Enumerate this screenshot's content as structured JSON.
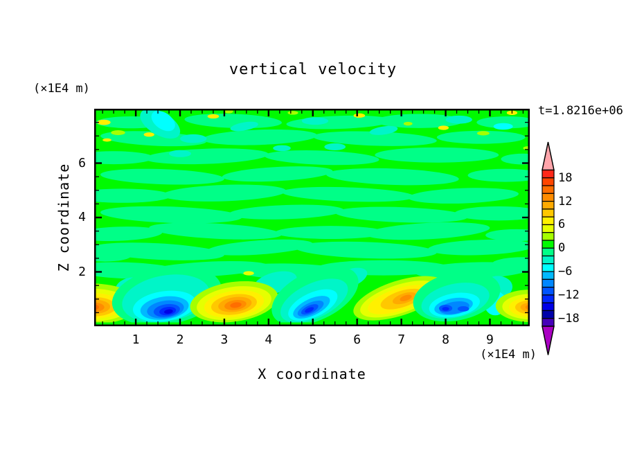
{
  "chart_data": {
    "type": "filled_contour",
    "title": "vertical velocity",
    "time_annotation": "t=1.8216e+06",
    "xlabel": "X coordinate",
    "zlabel": "Z coordinate",
    "x_unit": "(×1E4 m)",
    "z_unit": "(×1E4 m)",
    "xlim": [
      0.06,
      9.9
    ],
    "zlim": [
      0,
      8
    ],
    "x_major_ticks": [
      1,
      2,
      3,
      4,
      5,
      6,
      7,
      8,
      9
    ],
    "x_minor_step": 0.25,
    "z_major_ticks": [
      2,
      4,
      6
    ],
    "z_minor_step": 0.5,
    "grid": false,
    "legend_position": "right-colorbar",
    "contour_levels": {
      "min": -20,
      "max": 20,
      "step": 2
    },
    "colorbar": {
      "tick_values": [
        18,
        12,
        6,
        0,
        -6,
        -12,
        -18
      ],
      "tick_labels": [
        "18",
        "12",
        "6",
        "0",
        "−6",
        "−12",
        "−18"
      ],
      "band_colors": [
        "#FF2819",
        "#FF4600",
        "#FF6E00",
        "#FF8C00",
        "#FFAA00",
        "#FFC800",
        "#FFF000",
        "#E6FF00",
        "#A5FF00",
        "#00FA00",
        "#00FF87",
        "#00F5C8",
        "#00FFFF",
        "#00B9FF",
        "#0087FF",
        "#0055FF",
        "#0028FF",
        "#0000E6",
        "#0000AA",
        "#4600B9"
      ],
      "over_color": "#FFA5AB",
      "under_color": "#AA00C3",
      "outline_color": "#000000"
    },
    "field": {
      "description": "w field: near-zero streaky region aloft (bands -2..0 and 0..2), alternating strong updraft/downdraft cells near the bottom boundary",
      "base_color_index": 9,
      "streak_color_index": 10,
      "streaks": [
        [
          0.8,
          2.05,
          1.25,
          0.3,
          2
        ],
        [
          2.6,
          2.1,
          1.4,
          0.27,
          -3
        ],
        [
          4.6,
          2.0,
          1.35,
          0.3,
          2
        ],
        [
          6.6,
          2.15,
          1.5,
          0.28,
          0
        ],
        [
          8.6,
          2.05,
          1.3,
          0.3,
          -2
        ],
        [
          9.75,
          2.3,
          0.7,
          0.24,
          0
        ],
        [
          1.5,
          2.75,
          1.5,
          0.3,
          3
        ],
        [
          3.8,
          2.9,
          1.2,
          0.26,
          -4
        ],
        [
          6.2,
          2.8,
          1.6,
          0.3,
          2
        ],
        [
          8.8,
          2.9,
          1.2,
          0.28,
          -2
        ],
        [
          0.3,
          2.6,
          0.6,
          0.22,
          0
        ],
        [
          0.6,
          3.4,
          1.0,
          0.26,
          -2
        ],
        [
          2.8,
          3.5,
          1.5,
          0.28,
          3
        ],
        [
          5.4,
          3.45,
          1.25,
          0.24,
          0
        ],
        [
          7.6,
          3.5,
          1.4,
          0.3,
          -3
        ],
        [
          9.6,
          3.35,
          0.7,
          0.22,
          0
        ],
        [
          1.8,
          4.1,
          1.6,
          0.3,
          2
        ],
        [
          4.4,
          4.2,
          1.3,
          0.26,
          -2
        ],
        [
          7.0,
          4.1,
          1.5,
          0.28,
          2
        ],
        [
          9.2,
          4.15,
          1.0,
          0.26,
          0
        ],
        [
          0.7,
          4.8,
          1.1,
          0.26,
          0
        ],
        [
          3.0,
          4.9,
          1.4,
          0.3,
          -2
        ],
        [
          5.8,
          4.85,
          1.5,
          0.26,
          2
        ],
        [
          8.4,
          4.8,
          1.25,
          0.28,
          -2
        ],
        [
          1.6,
          5.5,
          1.4,
          0.28,
          2
        ],
        [
          4.2,
          5.6,
          1.25,
          0.26,
          -3
        ],
        [
          6.8,
          5.5,
          1.5,
          0.3,
          2
        ],
        [
          9.35,
          5.55,
          0.85,
          0.24,
          0
        ],
        [
          0.5,
          6.2,
          0.9,
          0.24,
          0
        ],
        [
          2.6,
          6.25,
          1.4,
          0.28,
          -2
        ],
        [
          5.2,
          6.2,
          1.3,
          0.26,
          2
        ],
        [
          7.8,
          6.3,
          1.4,
          0.28,
          0
        ],
        [
          9.75,
          6.15,
          0.5,
          0.2,
          0
        ],
        [
          1.4,
          6.9,
          1.2,
          0.26,
          3
        ],
        [
          3.8,
          6.95,
          1.3,
          0.28,
          -2
        ],
        [
          6.4,
          6.9,
          1.4,
          0.26,
          2
        ],
        [
          8.8,
          6.95,
          1.0,
          0.24,
          0
        ],
        [
          0.9,
          7.5,
          0.8,
          0.22,
          0
        ],
        [
          3.2,
          7.55,
          1.1,
          0.26,
          2
        ],
        [
          5.6,
          7.5,
          1.2,
          0.24,
          -2
        ],
        [
          7.4,
          7.55,
          1.0,
          0.26,
          0
        ],
        [
          9.4,
          7.5,
          0.7,
          0.22,
          0
        ]
      ],
      "accents": [
        [
          1.55,
          7.45,
          0.5,
          0.42,
          30,
          11
        ],
        [
          2.3,
          6.9,
          0.3,
          0.16,
          0,
          11
        ],
        [
          3.45,
          7.35,
          0.32,
          0.15,
          -10,
          11
        ],
        [
          5.05,
          7.55,
          0.3,
          0.14,
          0,
          11
        ],
        [
          5.5,
          6.6,
          0.24,
          0.13,
          0,
          11
        ],
        [
          6.6,
          7.2,
          0.32,
          0.15,
          -8,
          11
        ],
        [
          8.3,
          7.6,
          0.3,
          0.15,
          0,
          11
        ],
        [
          2.0,
          6.35,
          0.25,
          0.13,
          0,
          11
        ],
        [
          4.3,
          6.55,
          0.2,
          0.11,
          0,
          11
        ],
        [
          1.62,
          7.55,
          0.3,
          0.3,
          35,
          12
        ],
        [
          9.3,
          7.35,
          0.22,
          0.12,
          0,
          12
        ],
        [
          0.95,
          1.3,
          0.42,
          0.5,
          0,
          11
        ],
        [
          4.15,
          1.6,
          0.5,
          0.38,
          -15,
          11
        ],
        [
          5.8,
          1.75,
          0.45,
          0.33,
          -20,
          11
        ],
        [
          9.18,
          1.45,
          0.33,
          0.4,
          0,
          11
        ],
        [
          9.12,
          0.85,
          0.25,
          0.45,
          0,
          12
        ],
        [
          8.55,
          1.1,
          0.15,
          0.3,
          0,
          13
        ],
        [
          0.28,
          7.5,
          0.15,
          0.1,
          0,
          6
        ],
        [
          0.6,
          7.12,
          0.16,
          0.09,
          0,
          8
        ],
        [
          1.3,
          7.05,
          0.12,
          0.08,
          0,
          6
        ],
        [
          2.75,
          7.72,
          0.13,
          0.08,
          0,
          6
        ],
        [
          3.1,
          7.9,
          0.1,
          0.07,
          0,
          8
        ],
        [
          4.55,
          7.85,
          0.12,
          0.07,
          0,
          8
        ],
        [
          6.05,
          7.75,
          0.13,
          0.08,
          0,
          6
        ],
        [
          7.15,
          7.45,
          0.1,
          0.07,
          0,
          8
        ],
        [
          7.95,
          7.3,
          0.12,
          0.08,
          0,
          6
        ],
        [
          8.85,
          7.1,
          0.14,
          0.08,
          0,
          8
        ],
        [
          9.5,
          7.85,
          0.12,
          0.08,
          0,
          6
        ],
        [
          9.85,
          6.55,
          0.1,
          0.07,
          0,
          8
        ],
        [
          0.35,
          6.85,
          0.1,
          0.06,
          0,
          6
        ],
        [
          3.55,
          1.95,
          0.12,
          0.08,
          0,
          7
        ]
      ],
      "features": [
        {
          "name": "updraft-left-edge",
          "x": 0.02,
          "z": 0.72,
          "peak": 15,
          "rings": [
            [
              0,
              0.1,
              1.05,
              0.75,
              0,
              8
            ],
            [
              0,
              0.06,
              0.88,
              0.6,
              0,
              7
            ],
            [
              0,
              0.03,
              0.7,
              0.47,
              0,
              6
            ],
            [
              0,
              0,
              0.54,
              0.36,
              0,
              5
            ],
            [
              0,
              0,
              0.4,
              0.27,
              0,
              4
            ],
            [
              0,
              -0.02,
              0.27,
              0.18,
              0,
              3
            ],
            [
              0,
              -0.02,
              0.15,
              0.11,
              0,
              2
            ]
          ]
        },
        {
          "name": "downdraft-1",
          "x": 1.65,
          "z": 0.62,
          "peak": -15,
          "rings": [
            [
              0.05,
              0.5,
              1.25,
              1.05,
              -10,
              10
            ],
            [
              0.03,
              0.4,
              1.0,
              0.85,
              -10,
              11
            ],
            [
              0,
              0.12,
              0.72,
              0.55,
              -8,
              12
            ],
            [
              0,
              0.05,
              0.55,
              0.42,
              -8,
              13
            ],
            [
              0.02,
              0,
              0.42,
              0.32,
              -8,
              14
            ],
            [
              0.05,
              -0.04,
              0.3,
              0.23,
              -8,
              15
            ],
            [
              0.07,
              -0.06,
              0.19,
              0.15,
              -8,
              16
            ],
            [
              0.09,
              -0.08,
              0.1,
              0.08,
              -8,
              17
            ]
          ]
        },
        {
          "name": "updraft-2",
          "x": 3.22,
          "z": 0.8,
          "peak": 15,
          "rings": [
            [
              0,
              0.1,
              1.0,
              0.73,
              -8,
              8
            ],
            [
              0,
              0.05,
              0.85,
              0.6,
              -8,
              7
            ],
            [
              0,
              0.02,
              0.68,
              0.48,
              -8,
              6
            ],
            [
              0,
              0,
              0.52,
              0.37,
              -8,
              5
            ],
            [
              0.02,
              0,
              0.38,
              0.27,
              -8,
              4
            ],
            [
              0.03,
              -0.02,
              0.25,
              0.18,
              -8,
              3
            ],
            [
              0.04,
              -0.02,
              0.13,
              0.1,
              -8,
              2
            ]
          ]
        },
        {
          "name": "downdraft-2",
          "x": 4.95,
          "z": 0.62,
          "peak": -13,
          "rings": [
            [
              0.1,
              0.5,
              1.05,
              0.9,
              -25,
              10
            ],
            [
              0.08,
              0.32,
              0.82,
              0.64,
              -25,
              11
            ],
            [
              0.05,
              0.16,
              0.6,
              0.45,
              -25,
              12
            ],
            [
              0.02,
              0.08,
              0.45,
              0.31,
              -25,
              13
            ],
            [
              0,
              0.03,
              0.32,
              0.21,
              -25,
              14
            ],
            [
              -0.02,
              0,
              0.21,
              0.14,
              -25,
              15
            ],
            [
              -0.03,
              -0.02,
              0.11,
              0.08,
              -25,
              16
            ]
          ]
        },
        {
          "name": "updraft-3",
          "x": 6.95,
          "z": 0.98,
          "peak": 13,
          "rings": [
            [
              0,
              0.05,
              1.08,
              0.64,
              -18,
              8
            ],
            [
              0,
              0.02,
              0.92,
              0.52,
              -18,
              7
            ],
            [
              0,
              0,
              0.74,
              0.41,
              -18,
              6
            ],
            [
              0.06,
              0.02,
              0.5,
              0.3,
              -18,
              5
            ],
            [
              0.12,
              0.05,
              0.28,
              0.18,
              -18,
              4
            ],
            [
              0.15,
              0.06,
              0.14,
              0.1,
              -18,
              3
            ]
          ]
        },
        {
          "name": "downdraft-3",
          "x": 8.2,
          "z": 0.68,
          "peak": -13,
          "rings": [
            [
              0.05,
              0.42,
              1.0,
              0.88,
              -12,
              10
            ],
            [
              0.02,
              0.26,
              0.78,
              0.62,
              -12,
              11
            ],
            [
              0,
              0.1,
              0.58,
              0.43,
              -10,
              12
            ],
            [
              -0.02,
              0.05,
              0.44,
              0.3,
              -10,
              13
            ],
            [
              0,
              0,
              0.34,
              0.22,
              -10,
              14
            ],
            [
              -0.2,
              -0.02,
              0.15,
              0.13,
              0,
              15
            ],
            [
              0.2,
              -0.04,
              0.13,
              0.1,
              0,
              15
            ],
            [
              -0.2,
              -0.04,
              0.08,
              0.07,
              0,
              16
            ]
          ]
        },
        {
          "name": "updraft-right-edge",
          "x": 9.93,
          "z": 0.7,
          "peak": 13,
          "rings": [
            [
              0,
              0.05,
              0.8,
              0.6,
              0,
              8
            ],
            [
              0,
              0.02,
              0.65,
              0.47,
              0,
              7
            ],
            [
              0,
              0,
              0.5,
              0.36,
              0,
              6
            ],
            [
              0,
              0,
              0.36,
              0.26,
              0,
              5
            ],
            [
              0,
              0,
              0.24,
              0.17,
              0,
              4
            ],
            [
              0,
              0,
              0.13,
              0.1,
              0,
              3
            ]
          ]
        }
      ],
      "bottom_strip": {
        "height_z": 0.14,
        "color_index": 9
      }
    }
  }
}
